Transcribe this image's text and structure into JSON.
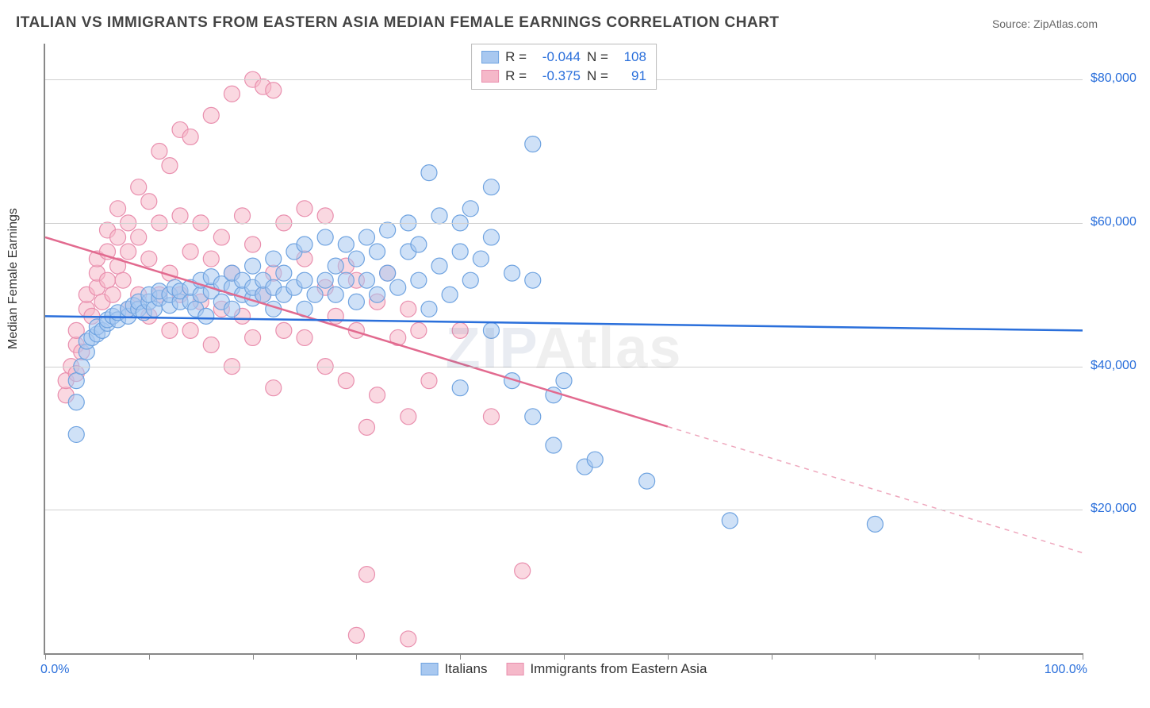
{
  "title": "ITALIAN VS IMMIGRANTS FROM EASTERN ASIA MEDIAN FEMALE EARNINGS CORRELATION CHART",
  "source": "Source: ZipAtlas.com",
  "ylabel": "Median Female Earnings",
  "watermark_a": "ZIP",
  "watermark_b": "Atlas",
  "chart": {
    "type": "scatter",
    "xlim": [
      0,
      100
    ],
    "ylim": [
      0,
      85000
    ],
    "x_unit": "%",
    "x_min_label": "0.0%",
    "x_max_label": "100.0%",
    "y_gridlines": [
      20000,
      40000,
      60000,
      80000
    ],
    "y_tick_labels": [
      "$20,000",
      "$40,000",
      "$60,000",
      "$80,000"
    ],
    "x_ticks_pct": [
      0,
      10,
      20,
      30,
      40,
      50,
      60,
      70,
      80,
      90,
      100
    ],
    "background_color": "#ffffff",
    "grid_color": "#d0d0d0",
    "axis_color": "#888888",
    "tick_label_color": "#2a6fdb",
    "marker_radius": 10,
    "marker_opacity": 0.55,
    "trend_line_width": 2.5
  },
  "series_a": {
    "name": "Italians",
    "fill": "#a8c8f0",
    "stroke": "#6fa3e0",
    "trend_color": "#2a6fdb",
    "R_label": "R =",
    "R_value": "-0.044",
    "N_label": "N =",
    "N_value": "108",
    "trend": {
      "x0": 0,
      "y0": 47000,
      "x1": 100,
      "y1": 45000,
      "x_solid_end": 100
    },
    "points": [
      [
        3,
        30500
      ],
      [
        3,
        35000
      ],
      [
        3,
        38000
      ],
      [
        3.5,
        40000
      ],
      [
        4,
        42000
      ],
      [
        4,
        43500
      ],
      [
        4.5,
        44000
      ],
      [
        5,
        44500
      ],
      [
        5,
        45500
      ],
      [
        5.5,
        45000
      ],
      [
        6,
        46000
      ],
      [
        6,
        46500
      ],
      [
        6.5,
        47000
      ],
      [
        7,
        46500
      ],
      [
        7,
        47500
      ],
      [
        8,
        47000
      ],
      [
        8,
        48000
      ],
      [
        8.5,
        48500
      ],
      [
        9,
        48000
      ],
      [
        9,
        49000
      ],
      [
        9.5,
        47500
      ],
      [
        10,
        49000
      ],
      [
        10,
        50000
      ],
      [
        10.5,
        48000
      ],
      [
        11,
        49500
      ],
      [
        11,
        50500
      ],
      [
        12,
        48500
      ],
      [
        12,
        50000
      ],
      [
        12.5,
        51000
      ],
      [
        13,
        49000
      ],
      [
        13,
        50500
      ],
      [
        14,
        49000
      ],
      [
        14,
        51000
      ],
      [
        14.5,
        48000
      ],
      [
        15,
        50000
      ],
      [
        15,
        52000
      ],
      [
        15.5,
        47000
      ],
      [
        16,
        50500
      ],
      [
        16,
        52500
      ],
      [
        17,
        49000
      ],
      [
        17,
        51500
      ],
      [
        18,
        48000
      ],
      [
        18,
        51000
      ],
      [
        18,
        53000
      ],
      [
        19,
        50000
      ],
      [
        19,
        52000
      ],
      [
        20,
        49500
      ],
      [
        20,
        51000
      ],
      [
        20,
        54000
      ],
      [
        21,
        50000
      ],
      [
        21,
        52000
      ],
      [
        22,
        48000
      ],
      [
        22,
        51000
      ],
      [
        22,
        55000
      ],
      [
        23,
        50000
      ],
      [
        23,
        53000
      ],
      [
        24,
        51000
      ],
      [
        24,
        56000
      ],
      [
        25,
        48000
      ],
      [
        25,
        52000
      ],
      [
        25,
        57000
      ],
      [
        26,
        50000
      ],
      [
        27,
        52000
      ],
      [
        27,
        58000
      ],
      [
        28,
        50000
      ],
      [
        28,
        54000
      ],
      [
        29,
        52000
      ],
      [
        29,
        57000
      ],
      [
        30,
        49000
      ],
      [
        30,
        55000
      ],
      [
        31,
        52000
      ],
      [
        31,
        58000
      ],
      [
        32,
        50000
      ],
      [
        32,
        56000
      ],
      [
        33,
        53000
      ],
      [
        33,
        59000
      ],
      [
        34,
        51000
      ],
      [
        35,
        56000
      ],
      [
        35,
        60000
      ],
      [
        36,
        52000
      ],
      [
        36,
        57000
      ],
      [
        37,
        48000
      ],
      [
        37,
        67000
      ],
      [
        38,
        54000
      ],
      [
        38,
        61000
      ],
      [
        39,
        50000
      ],
      [
        40,
        56000
      ],
      [
        40,
        60000
      ],
      [
        40,
        37000
      ],
      [
        41,
        52000
      ],
      [
        41,
        62000
      ],
      [
        42,
        55000
      ],
      [
        43,
        45000
      ],
      [
        43,
        58000
      ],
      [
        43,
        65000
      ],
      [
        45,
        38000
      ],
      [
        45,
        53000
      ],
      [
        47,
        33000
      ],
      [
        47,
        52000
      ],
      [
        47,
        71000
      ],
      [
        49,
        29000
      ],
      [
        49,
        36000
      ],
      [
        50,
        38000
      ],
      [
        52,
        26000
      ],
      [
        53,
        27000
      ],
      [
        58,
        24000
      ],
      [
        66,
        18500
      ],
      [
        80,
        18000
      ]
    ]
  },
  "series_b": {
    "name": "Immigrants from Eastern Asia",
    "fill": "#f5b8c9",
    "stroke": "#e98fae",
    "trend_color": "#e26a8f",
    "R_label": "R =",
    "R_value": "-0.375",
    "N_label": "N =",
    "N_value": "91",
    "trend": {
      "x0": 0,
      "y0": 58000,
      "x1": 100,
      "y1": 14000,
      "x_solid_end": 60
    },
    "points": [
      [
        2,
        36000
      ],
      [
        2,
        38000
      ],
      [
        2.5,
        40000
      ],
      [
        3,
        39000
      ],
      [
        3,
        43000
      ],
      [
        3,
        45000
      ],
      [
        3.5,
        42000
      ],
      [
        4,
        48000
      ],
      [
        4,
        50000
      ],
      [
        4.5,
        47000
      ],
      [
        5,
        51000
      ],
      [
        5,
        53000
      ],
      [
        5,
        55000
      ],
      [
        5.5,
        49000
      ],
      [
        6,
        52000
      ],
      [
        6,
        56000
      ],
      [
        6,
        59000
      ],
      [
        6.5,
        50000
      ],
      [
        7,
        54000
      ],
      [
        7,
        58000
      ],
      [
        7,
        62000
      ],
      [
        7.5,
        52000
      ],
      [
        8,
        48000
      ],
      [
        8,
        56000
      ],
      [
        8,
        60000
      ],
      [
        9,
        50000
      ],
      [
        9,
        58000
      ],
      [
        9,
        65000
      ],
      [
        10,
        47000
      ],
      [
        10,
        55000
      ],
      [
        10,
        63000
      ],
      [
        11,
        50000
      ],
      [
        11,
        60000
      ],
      [
        11,
        70000
      ],
      [
        12,
        45000
      ],
      [
        12,
        53000
      ],
      [
        12,
        68000
      ],
      [
        13,
        50000
      ],
      [
        13,
        61000
      ],
      [
        13,
        73000
      ],
      [
        14,
        45000
      ],
      [
        14,
        56000
      ],
      [
        14,
        72000
      ],
      [
        15,
        49000
      ],
      [
        15,
        60000
      ],
      [
        16,
        43000
      ],
      [
        16,
        55000
      ],
      [
        16,
        75000
      ],
      [
        17,
        48000
      ],
      [
        17,
        58000
      ],
      [
        18,
        40000
      ],
      [
        18,
        53000
      ],
      [
        18,
        78000
      ],
      [
        19,
        47000
      ],
      [
        19,
        61000
      ],
      [
        20,
        80000
      ],
      [
        20,
        44000
      ],
      [
        20,
        57000
      ],
      [
        21,
        79000
      ],
      [
        21,
        50000
      ],
      [
        22,
        37000
      ],
      [
        22,
        53000
      ],
      [
        22,
        78500
      ],
      [
        23,
        45000
      ],
      [
        23,
        60000
      ],
      [
        25,
        62000
      ],
      [
        25,
        44000
      ],
      [
        25,
        55000
      ],
      [
        27,
        40000
      ],
      [
        27,
        51000
      ],
      [
        27,
        61000
      ],
      [
        28,
        47000
      ],
      [
        29,
        54000
      ],
      [
        29,
        38000
      ],
      [
        30,
        45000
      ],
      [
        30,
        52000
      ],
      [
        31,
        31500
      ],
      [
        32,
        49000
      ],
      [
        32,
        36000
      ],
      [
        33,
        53000
      ],
      [
        34,
        44000
      ],
      [
        35,
        33000
      ],
      [
        35,
        48000
      ],
      [
        36,
        45000
      ],
      [
        37,
        38000
      ],
      [
        40,
        45000
      ],
      [
        43,
        33000
      ],
      [
        46,
        11500
      ],
      [
        30,
        2500
      ],
      [
        35,
        2000
      ],
      [
        31,
        11000
      ]
    ]
  }
}
